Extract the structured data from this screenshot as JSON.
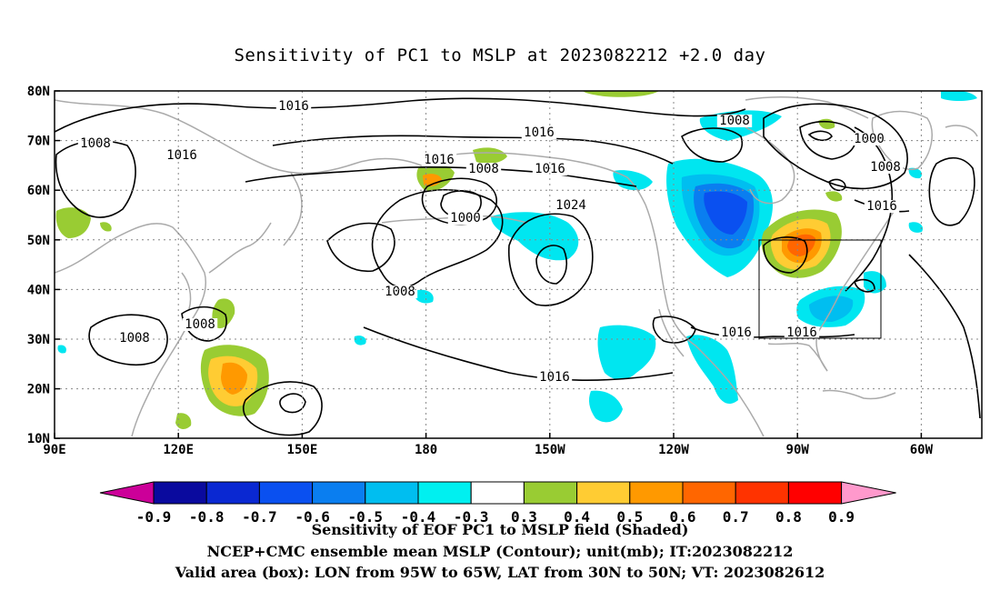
{
  "title": "Sensitivity of PC1 to MSLP at 2023082212 +2.0 day",
  "map": {
    "lat_labels": [
      "80N",
      "70N",
      "60N",
      "50N",
      "40N",
      "30N",
      "20N",
      "10N"
    ],
    "lon_labels": [
      "90E",
      "120E",
      "150E",
      "180",
      "150W",
      "120W",
      "90W",
      "60W"
    ],
    "contour_labels": [
      "1016",
      "1016",
      "1016",
      "1016",
      "1016",
      "1016",
      "1016",
      "1016",
      "1016",
      "1008",
      "1008",
      "1008",
      "1008",
      "1008",
      "1008",
      "1008",
      "1000",
      "1000",
      "1024"
    ],
    "valid_box": {
      "lon_from": "95W",
      "lon_to": "65W",
      "lat_from": "30N",
      "lat_to": "50N"
    }
  },
  "colorbar": {
    "labels": [
      "-0.9",
      "-0.8",
      "-0.7",
      "-0.6",
      "-0.5",
      "-0.4",
      "-0.3",
      "0.3",
      "0.4",
      "0.5",
      "0.6",
      "0.7",
      "0.8",
      "0.9"
    ],
    "colors": [
      "#cc0099",
      "#0a0a9e",
      "#0a28d2",
      "#0a50f0",
      "#0a7ef0",
      "#00bef0",
      "#00f0f0",
      "#ffffff",
      "#99cc33",
      "#ffcc33",
      "#ff9900",
      "#ff6600",
      "#ff3300",
      "#ff0000",
      "#ff99cc"
    ]
  },
  "captions": {
    "line1": "Sensitivity of EOF PC1 to MSLP field (Shaded)",
    "line2": "NCEP+CMC ensemble mean MSLP (Contour); unit(mb); IT:2023082212",
    "line3": "Valid area (box): LON from 95W to 65W, LAT from 30N to 50N; VT: 2023082612"
  },
  "colors": {
    "coast": "#aaaaaa",
    "contour": "#000000",
    "grid": "#888888",
    "cyan": "#00e6f0",
    "lightblue": "#00bef0",
    "blue": "#0a7ef0",
    "deepblue": "#0a50f0",
    "green": "#99cc33",
    "yellow": "#ffcc33",
    "orange": "#ff9900",
    "darkorange": "#ff6600"
  }
}
